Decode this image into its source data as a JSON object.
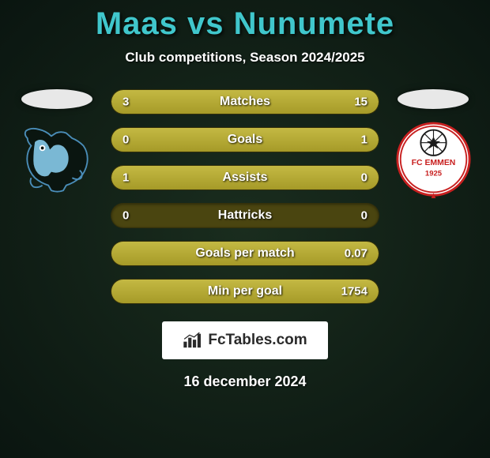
{
  "title": "Maas vs Nunumete",
  "subtitle": "Club competitions, Season 2024/2025",
  "colors": {
    "title": "#40c7cc",
    "bar_fill_top": "#c4b943",
    "bar_fill_bottom": "#a69a28",
    "bar_bg": "#4a4510",
    "text": "#ffffff",
    "brand_bg": "#ffffff",
    "brand_text": "#2a2a2a"
  },
  "bars": [
    {
      "label": "Matches",
      "left": "3",
      "right": "15",
      "left_pct": 16.7,
      "right_pct": 83.3
    },
    {
      "label": "Goals",
      "left": "0",
      "right": "1",
      "left_pct": 0,
      "right_pct": 100
    },
    {
      "label": "Assists",
      "left": "1",
      "right": "0",
      "left_pct": 100,
      "right_pct": 0
    },
    {
      "label": "Hattricks",
      "left": "0",
      "right": "0",
      "left_pct": 0,
      "right_pct": 0
    },
    {
      "label": "Goals per match",
      "left": "",
      "right": "0.07",
      "left_pct": 0,
      "right_pct": 100
    },
    {
      "label": "Min per goal",
      "left": "",
      "right": "1754",
      "left_pct": 0,
      "right_pct": 100
    }
  ],
  "brand": "FcTables.com",
  "date": "16 december 2024",
  "left_team": "FC Den Bosch",
  "right_team": "FC Emmen"
}
